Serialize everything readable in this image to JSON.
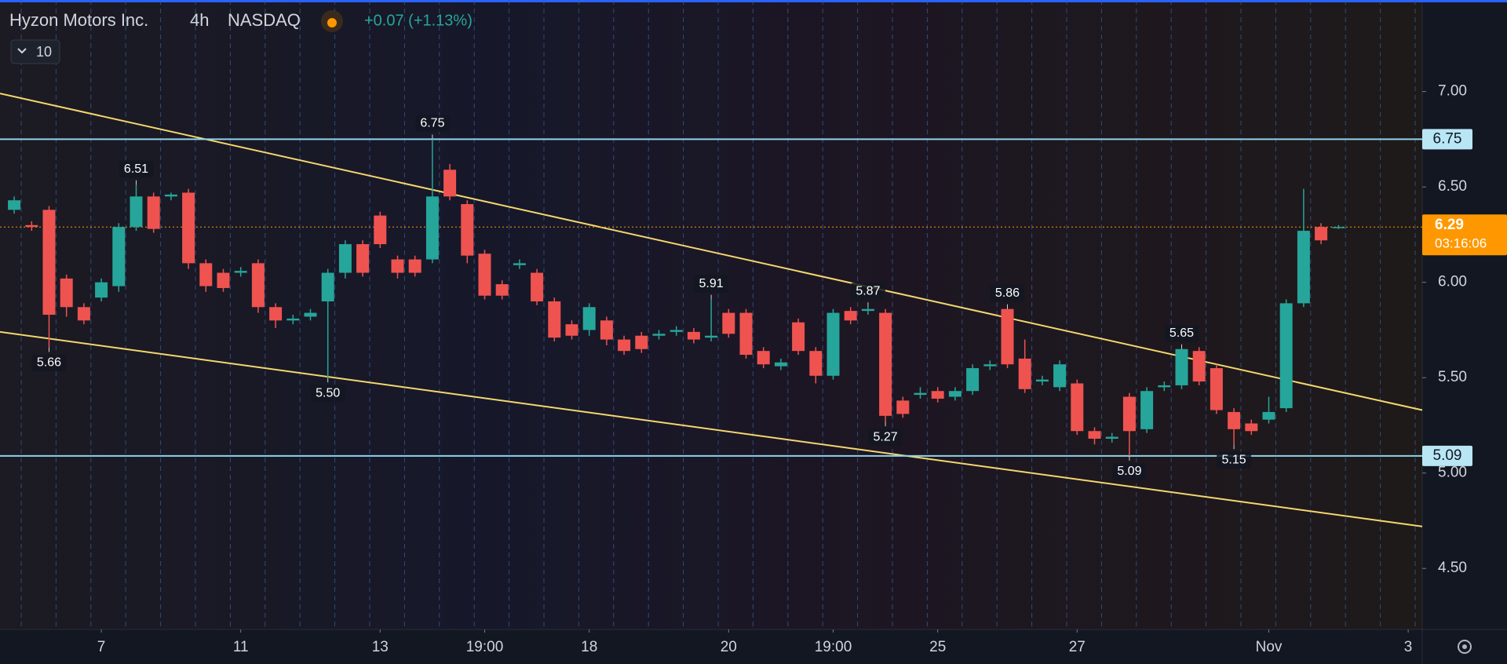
{
  "chart_data": {
    "type": "candlestick",
    "title": "Hyzon Motors Inc.",
    "interval": "4h",
    "exchange": "NASDAQ",
    "change": "+0.07 (+1.13%)",
    "collapse_count": "10",
    "up_color": "#26a69a",
    "down_color": "#ef5350",
    "open": [
      6.38,
      6.3,
      6.38,
      6.02,
      5.87,
      5.92,
      5.98,
      6.29,
      6.45,
      6.45,
      6.47,
      6.1,
      6.05,
      6.05,
      6.1,
      5.87,
      5.8,
      5.82,
      5.9,
      6.05,
      6.2,
      6.35,
      6.12,
      6.12,
      6.12,
      6.59,
      6.41,
      6.15,
      5.99,
      6.09,
      6.05,
      5.9,
      5.78,
      5.75,
      5.8,
      5.7,
      5.72,
      5.72,
      5.74,
      5.74,
      5.71,
      5.84,
      5.84,
      5.64,
      5.56,
      5.79,
      5.64,
      5.51,
      5.85,
      5.85,
      5.84,
      5.38,
      5.41,
      5.43,
      5.4,
      5.43,
      5.56,
      5.86,
      5.6,
      5.48,
      5.45,
      5.47,
      5.22,
      5.18,
      5.4,
      5.23,
      5.45,
      5.46,
      5.64,
      5.55,
      5.32,
      5.26,
      5.28,
      5.34,
      5.89,
      6.29,
      6.29
    ],
    "high": [
      6.45,
      6.32,
      6.4,
      6.04,
      5.89,
      6.02,
      6.31,
      6.51,
      6.47,
      6.47,
      6.49,
      6.12,
      6.07,
      6.08,
      6.12,
      5.89,
      5.83,
      5.86,
      6.07,
      6.22,
      6.22,
      6.37,
      6.14,
      6.14,
      6.75,
      6.62,
      6.43,
      6.17,
      6.01,
      6.12,
      6.07,
      5.92,
      5.8,
      5.89,
      5.82,
      5.72,
      5.74,
      5.75,
      5.77,
      5.76,
      5.91,
      5.86,
      5.86,
      5.66,
      5.6,
      5.81,
      5.66,
      5.86,
      5.87,
      5.87,
      5.86,
      5.4,
      5.45,
      5.45,
      5.45,
      5.57,
      5.59,
      5.86,
      5.7,
      5.51,
      5.59,
      5.49,
      5.24,
      5.21,
      5.42,
      5.45,
      5.48,
      5.65,
      5.66,
      5.57,
      5.34,
      5.28,
      5.4,
      5.91,
      6.49,
      6.31,
      6.3
    ],
    "low": [
      6.36,
      6.27,
      5.66,
      5.82,
      5.78,
      5.9,
      5.95,
      6.27,
      6.26,
      6.43,
      6.07,
      5.95,
      5.95,
      6.03,
      5.84,
      5.76,
      5.78,
      5.8,
      5.5,
      6.02,
      6.03,
      6.18,
      6.02,
      6.03,
      6.1,
      6.43,
      6.1,
      5.91,
      5.91,
      6.07,
      5.88,
      5.69,
      5.7,
      5.72,
      5.67,
      5.62,
      5.63,
      5.7,
      5.72,
      5.68,
      5.69,
      5.71,
      5.6,
      5.55,
      5.54,
      5.62,
      5.47,
      5.49,
      5.78,
      5.83,
      5.27,
      5.29,
      5.39,
      5.37,
      5.38,
      5.41,
      5.54,
      5.55,
      5.42,
      5.46,
      5.43,
      5.2,
      5.15,
      5.16,
      5.09,
      5.21,
      5.43,
      5.44,
      5.46,
      5.31,
      5.15,
      5.2,
      5.26,
      5.32,
      5.87,
      6.2,
      6.28
    ],
    "close": [
      6.43,
      6.29,
      5.83,
      5.87,
      5.8,
      6.0,
      6.29,
      6.45,
      6.28,
      6.46,
      6.1,
      5.98,
      5.97,
      6.06,
      5.87,
      5.8,
      5.81,
      5.84,
      6.05,
      6.2,
      6.05,
      6.2,
      6.05,
      6.05,
      6.45,
      6.45,
      6.14,
      5.93,
      5.93,
      6.1,
      5.9,
      5.71,
      5.72,
      5.87,
      5.7,
      5.64,
      5.65,
      5.73,
      5.75,
      5.7,
      5.72,
      5.73,
      5.62,
      5.57,
      5.58,
      5.64,
      5.51,
      5.84,
      5.8,
      5.86,
      5.3,
      5.31,
      5.42,
      5.39,
      5.43,
      5.55,
      5.57,
      5.57,
      5.44,
      5.49,
      5.57,
      5.22,
      5.18,
      5.19,
      5.22,
      5.43,
      5.46,
      5.65,
      5.48,
      5.33,
      5.23,
      5.22,
      5.32,
      5.89,
      6.27,
      6.22,
      6.29
    ],
    "ylim": [
      4.18,
      7.48
    ],
    "yticks": [
      {
        "value": 4.5,
        "label": "4.50"
      },
      {
        "value": 5,
        "label": "5.00"
      },
      {
        "value": 5.5,
        "label": "5.50"
      },
      {
        "value": 6,
        "label": "6.00"
      },
      {
        "value": 6.5,
        "label": "6.50"
      },
      {
        "value": 7,
        "label": "7.00"
      }
    ],
    "xticks": [
      {
        "value": 5,
        "label": "7"
      },
      {
        "value": 13,
        "label": "11"
      },
      {
        "value": 21,
        "label": "13"
      },
      {
        "value": 27,
        "label": "19:00"
      },
      {
        "value": 33,
        "label": "18"
      },
      {
        "value": 41,
        "label": "20"
      },
      {
        "value": 47,
        "label": "19:00"
      },
      {
        "value": 53,
        "label": "25"
      },
      {
        "value": 61,
        "label": "27"
      },
      {
        "value": 72,
        "label": "Nov"
      },
      {
        "value": 80,
        "label": "3"
      }
    ],
    "annotations": [
      {
        "index": 7,
        "value": 6.51,
        "label": "6.51",
        "side": "above"
      },
      {
        "index": 2,
        "value": 5.66,
        "label": "5.66",
        "side": "below"
      },
      {
        "index": 24,
        "value": 6.75,
        "label": "6.75",
        "side": "above"
      },
      {
        "index": 18,
        "value": 5.5,
        "label": "5.50",
        "side": "below"
      },
      {
        "index": 40,
        "value": 5.91,
        "label": "5.91",
        "side": "above"
      },
      {
        "index": 49,
        "value": 5.87,
        "label": "5.87",
        "side": "above"
      },
      {
        "index": 50,
        "value": 5.27,
        "label": "5.27",
        "side": "below"
      },
      {
        "index": 57,
        "value": 5.86,
        "label": "5.86",
        "side": "above"
      },
      {
        "index": 67,
        "value": 5.65,
        "label": "5.65",
        "side": "above"
      },
      {
        "index": 64,
        "value": 5.09,
        "label": "5.09",
        "side": "below"
      },
      {
        "index": 70,
        "value": 5.15,
        "label": "5.15",
        "side": "below"
      }
    ],
    "levels": [
      6.75,
      5.09
    ],
    "trend_lines": [
      {
        "start": 6.99,
        "end": 5.33
      },
      {
        "start": 5.74,
        "end": 4.72
      }
    ],
    "last_price": 6.29,
    "countdown": "03:16:06"
  }
}
